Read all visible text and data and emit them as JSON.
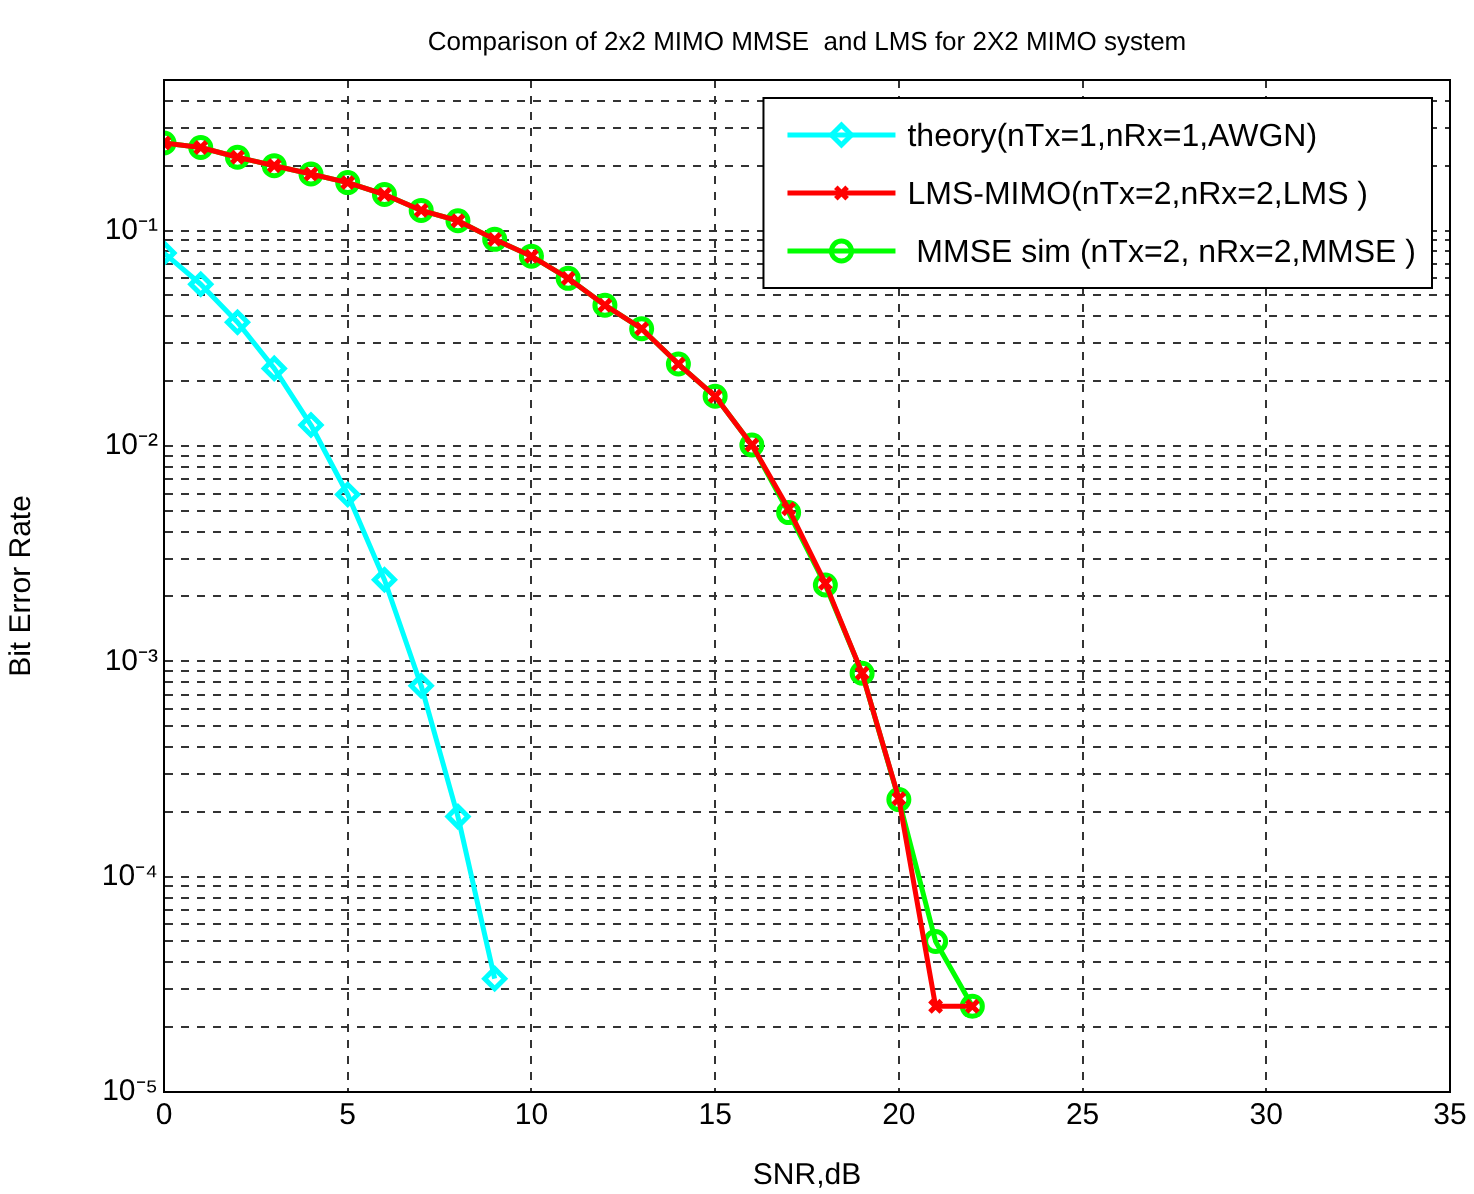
{
  "chart_data": {
    "type": "line",
    "title": "Comparison of 2x2 MIMO MMSE  and LMS for 2X2 MIMO system",
    "xlabel": "SNR,dB",
    "ylabel": "Bit Error Rate",
    "log": "y",
    "grid": true,
    "legend": "top right",
    "xlim": [
      0,
      35
    ],
    "xticks": [
      0,
      5,
      10,
      15,
      20,
      25,
      30,
      35
    ],
    "ylim": [
      1e-05,
      0.5
    ],
    "yticks": [
      {
        "value": 1e-05,
        "label": "10⁻⁵"
      },
      {
        "value": 2e-05,
        "label": null
      },
      {
        "value": 3e-05,
        "label": null
      },
      {
        "value": 4e-05,
        "label": null
      },
      {
        "value": 5e-05,
        "label": null
      },
      {
        "value": 6e-05,
        "label": null
      },
      {
        "value": 7e-05,
        "label": null
      },
      {
        "value": 8e-05,
        "label": null
      },
      {
        "value": 9e-05,
        "label": null
      },
      {
        "value": 0.0001,
        "label": "10⁻⁴"
      },
      {
        "value": 0.0002,
        "label": null
      },
      {
        "value": 0.0003,
        "label": null
      },
      {
        "value": 0.0004,
        "label": null
      },
      {
        "value": 0.0005,
        "label": null
      },
      {
        "value": 0.0006,
        "label": null
      },
      {
        "value": 0.0007,
        "label": null
      },
      {
        "value": 0.0008,
        "label": null
      },
      {
        "value": 0.0009,
        "label": null
      },
      {
        "value": 0.001,
        "label": "10⁻³"
      },
      {
        "value": 0.002,
        "label": null
      },
      {
        "value": 0.003,
        "label": null
      },
      {
        "value": 0.004,
        "label": null
      },
      {
        "value": 0.005,
        "label": null
      },
      {
        "value": 0.006,
        "label": null
      },
      {
        "value": 0.007,
        "label": null
      },
      {
        "value": 0.008,
        "label": null
      },
      {
        "value": 0.009,
        "label": null
      },
      {
        "value": 0.01,
        "label": "10⁻²"
      },
      {
        "value": 0.02,
        "label": null
      },
      {
        "value": 0.03,
        "label": null
      },
      {
        "value": 0.04,
        "label": null
      },
      {
        "value": 0.05,
        "label": null
      },
      {
        "value": 0.06,
        "label": null
      },
      {
        "value": 0.07,
        "label": null
      },
      {
        "value": 0.08,
        "label": null
      },
      {
        "value": 0.09,
        "label": null
      },
      {
        "value": 0.1,
        "label": "10⁻¹"
      },
      {
        "value": 0.2,
        "label": null
      },
      {
        "value": 0.3,
        "label": null
      },
      {
        "value": 0.4,
        "label": null
      }
    ],
    "series": [
      {
        "name": "theory(nTx=1,nRx=1,AWGN)",
        "color": "#00ffff",
        "marker": "diamond",
        "x": [
          0,
          1,
          2,
          3,
          4,
          5,
          6,
          7,
          8,
          9
        ],
        "values": [
          0.0786,
          0.0563,
          0.0375,
          0.0229,
          0.0125,
          0.00595,
          0.00239,
          0.00077,
          0.00019,
          3.36e-05
        ]
      },
      {
        "name": "LMS-MIMO(nTx=2,nRx=2,LMS )",
        "color": "#ff0000",
        "marker": "cross",
        "x": [
          0,
          1,
          2,
          3,
          4,
          5,
          6,
          7,
          8,
          9,
          10,
          11,
          12,
          13,
          14,
          15,
          16,
          17,
          18,
          19,
          20,
          21,
          22
        ],
        "values": [
          0.255,
          0.243,
          0.219,
          0.2,
          0.183,
          0.167,
          0.147,
          0.124,
          0.111,
          0.091,
          0.076,
          0.06,
          0.045,
          0.035,
          0.024,
          0.017,
          0.0101,
          0.0051,
          0.0023,
          0.00088,
          0.00023,
          2.5e-05,
          2.5e-05
        ]
      },
      {
        "name": " MMSE sim (nTx=2, nRx=2,MMSE )",
        "color": "#00ff00",
        "marker": "circle",
        "x": [
          0,
          1,
          2,
          3,
          4,
          5,
          6,
          7,
          8,
          9,
          10,
          11,
          12,
          13,
          14,
          15,
          16,
          17,
          18,
          19,
          20,
          21,
          22
        ],
        "values": [
          0.255,
          0.243,
          0.219,
          0.2,
          0.183,
          0.167,
          0.147,
          0.124,
          0.111,
          0.091,
          0.076,
          0.06,
          0.045,
          0.035,
          0.024,
          0.017,
          0.0101,
          0.0049,
          0.00226,
          0.00088,
          0.000228,
          5e-05,
          2.5e-05
        ]
      }
    ]
  }
}
